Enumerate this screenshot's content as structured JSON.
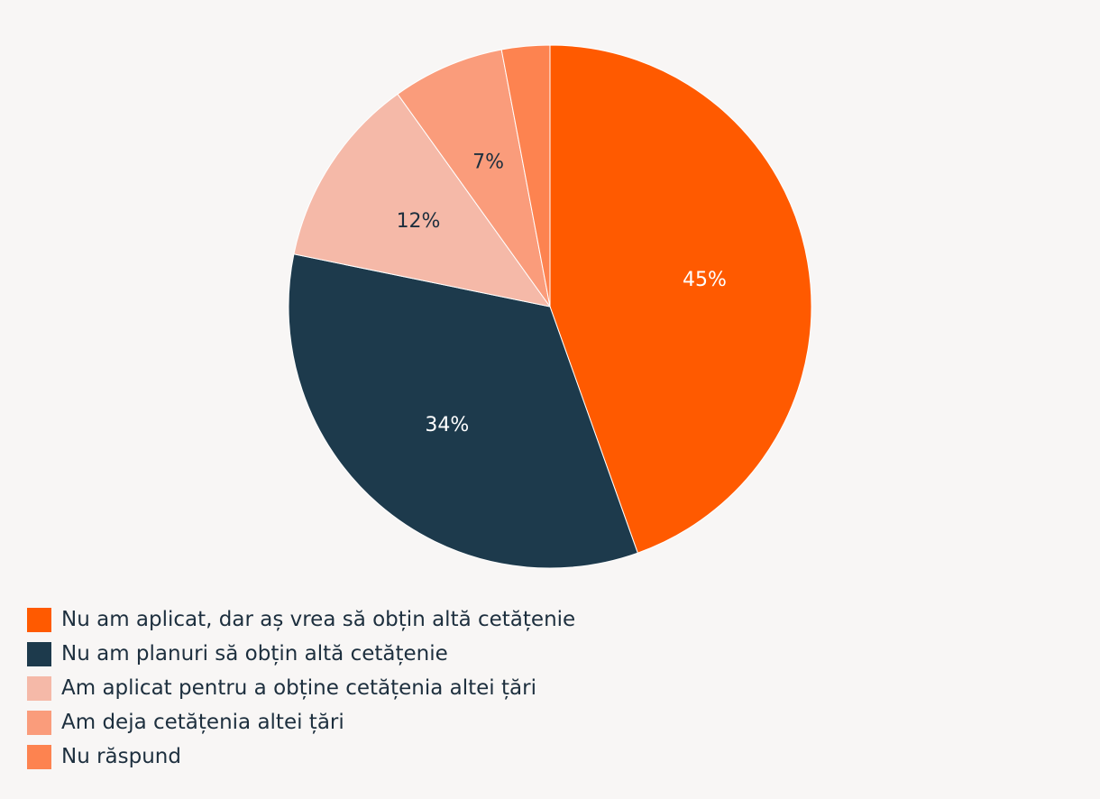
{
  "chart_data": {
    "type": "pie",
    "start_angle_deg": 0,
    "direction": "clockwise",
    "slices": [
      {
        "label": "Nu am aplicat, dar aș vrea să obțin altă cetățenie",
        "value": 45,
        "value_label": "45%",
        "color": "#ff5a00",
        "label_color": "#ffffff"
      },
      {
        "label": "Nu am planuri să obțin altă cetățenie",
        "value": 34,
        "value_label": "34%",
        "color": "#1d3a4c",
        "label_color": "#ffffff"
      },
      {
        "label": "Am aplicat pentru a obține cetățenia altei țări",
        "value": 12,
        "value_label": "12%",
        "color": "#f5b9a8",
        "label_color": "#1d2f3e"
      },
      {
        "label": "Am deja cetățenia altei țări",
        "value": 7,
        "value_label": "7%",
        "color": "#fa9c7b",
        "label_color": "#1d2f3e"
      },
      {
        "label": "Nu răspund",
        "value": 3,
        "value_label": "",
        "color": "#fd8350",
        "label_color": "#1d2f3e"
      }
    ]
  }
}
